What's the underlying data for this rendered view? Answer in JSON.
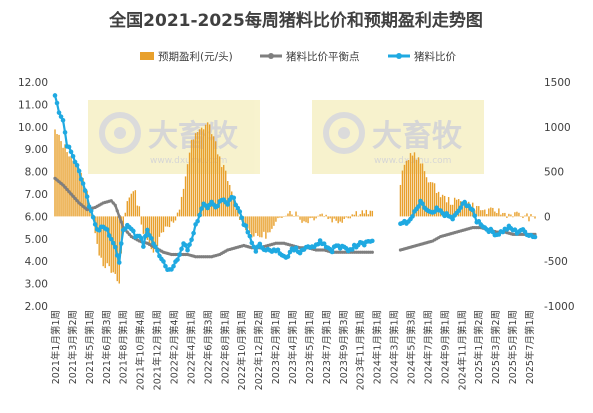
{
  "chart_data": {
    "type": "bar+line",
    "title": "全国2021-2025每周猪料比价和预期盈利走势图",
    "legend_position": "top-center",
    "legend": [
      {
        "key": "profit",
        "label": "预期盈利(元/头)",
        "color": "#E8A02C"
      },
      {
        "key": "breakeven",
        "label": "猪料比价平衡点",
        "color": "#7F7F7F"
      },
      {
        "key": "ratio",
        "label": "猪料比价",
        "color": "#1FA9E1"
      }
    ],
    "left_axis": {
      "min": 2.0,
      "max": 12.0,
      "step": 1.0,
      "ticks": [
        "2.00",
        "3.00",
        "4.00",
        "5.00",
        "6.00",
        "7.00",
        "8.00",
        "9.00",
        "10.00",
        "11.00",
        "12.00"
      ]
    },
    "right_axis": {
      "min": -1000,
      "max": 1500,
      "step": 500,
      "ticks": [
        "-1000",
        "-500",
        "0",
        "500",
        "1000",
        "1500"
      ]
    },
    "x_categories": [
      "2021年1月第1周",
      "2021年3月第2周",
      "2021年5月第1周",
      "2021年6月第3周",
      "2021年8月第1周",
      "2021年10月第4周",
      "2021年12月第1周",
      "2022年2月第4周",
      "2022年4月第1周",
      "2022年6月第3周",
      "2022年8月第1周",
      "2022年10月第1周",
      "2022年12月第2周",
      "2023年2月第1周",
      "2023年4月第1周",
      "2023年5月第1周",
      "2023年7月第1周",
      "2023年9月第3周",
      "2023年11月第1周",
      "2024年1月第1周",
      "2024年3月第1周",
      "2024年5月第3周",
      "2024年7月第1周",
      "2024年9月第1周",
      "2024年11月第1周",
      "2025年1月第2周",
      "2025年3月第2周",
      "2025年5月第1周",
      "2025年7月第1周"
    ],
    "weeks_total": 240,
    "ratio_anchors": [
      [
        0,
        11.4
      ],
      [
        2,
        10.7
      ],
      [
        4,
        10.3
      ],
      [
        6,
        9.2
      ],
      [
        9,
        8.7
      ],
      [
        12,
        8.0
      ],
      [
        15,
        7.2
      ],
      [
        17,
        6.5
      ],
      [
        20,
        5.7
      ],
      [
        22,
        5.3
      ],
      [
        24,
        5.6
      ],
      [
        27,
        5.2
      ],
      [
        30,
        4.6
      ],
      [
        32,
        4.0
      ],
      [
        34,
        5.4
      ],
      [
        36,
        5.6
      ],
      [
        38,
        5.5
      ],
      [
        40,
        5.1
      ],
      [
        42,
        5.2
      ],
      [
        44,
        4.7
      ],
      [
        46,
        5.4
      ],
      [
        48,
        5.0
      ],
      [
        50,
        4.6
      ],
      [
        52,
        4.3
      ],
      [
        54,
        4.0
      ],
      [
        56,
        3.7
      ],
      [
        58,
        3.6
      ],
      [
        60,
        3.9
      ],
      [
        62,
        4.3
      ],
      [
        64,
        4.8
      ],
      [
        66,
        4.5
      ],
      [
        68,
        5.0
      ],
      [
        70,
        5.6
      ],
      [
        72,
        6.1
      ],
      [
        74,
        6.5
      ],
      [
        76,
        6.3
      ],
      [
        78,
        6.6
      ],
      [
        80,
        6.4
      ],
      [
        82,
        6.7
      ],
      [
        84,
        6.8
      ],
      [
        86,
        6.5
      ],
      [
        88,
        6.9
      ],
      [
        90,
        6.6
      ],
      [
        92,
        6.2
      ],
      [
        94,
        5.7
      ],
      [
        96,
        5.3
      ],
      [
        98,
        4.8
      ],
      [
        100,
        4.5
      ],
      [
        102,
        4.7
      ],
      [
        104,
        4.6
      ],
      [
        106,
        4.5
      ],
      [
        108,
        4.4
      ],
      [
        110,
        4.5
      ],
      [
        112,
        4.4
      ],
      [
        114,
        4.3
      ],
      [
        116,
        4.2
      ],
      [
        118,
        4.5
      ],
      [
        120,
        4.6
      ],
      [
        122,
        4.4
      ],
      [
        124,
        4.6
      ],
      [
        126,
        4.7
      ],
      [
        128,
        4.6
      ],
      [
        130,
        4.8
      ],
      [
        132,
        4.9
      ],
      [
        134,
        4.8
      ],
      [
        136,
        4.6
      ],
      [
        138,
        4.5
      ],
      [
        140,
        4.7
      ],
      [
        142,
        4.6
      ],
      [
        144,
        4.6
      ],
      [
        146,
        4.5
      ],
      [
        148,
        4.6
      ],
      [
        150,
        4.7
      ],
      [
        152,
        4.9
      ],
      [
        154,
        4.8
      ],
      [
        156,
        4.9
      ],
      [
        158,
        4.9
      ],
      [
        160,
        null
      ],
      [
        171,
        null
      ],
      [
        172,
        5.6
      ],
      [
        174,
        5.8
      ],
      [
        176,
        5.7
      ],
      [
        178,
        6.0
      ],
      [
        180,
        6.3
      ],
      [
        182,
        6.6
      ],
      [
        184,
        6.4
      ],
      [
        186,
        6.2
      ],
      [
        188,
        6.1
      ],
      [
        190,
        6.3
      ],
      [
        192,
        6.2
      ],
      [
        194,
        6.1
      ],
      [
        196,
        6.0
      ],
      [
        198,
        5.9
      ],
      [
        200,
        6.1
      ],
      [
        202,
        6.4
      ],
      [
        204,
        6.6
      ],
      [
        206,
        6.5
      ],
      [
        208,
        6.2
      ],
      [
        210,
        5.8
      ],
      [
        212,
        5.7
      ],
      [
        214,
        5.5
      ],
      [
        216,
        5.4
      ],
      [
        218,
        5.3
      ],
      [
        220,
        5.2
      ],
      [
        222,
        5.3
      ],
      [
        224,
        5.4
      ],
      [
        226,
        5.5
      ],
      [
        228,
        5.4
      ],
      [
        230,
        5.3
      ],
      [
        232,
        5.4
      ],
      [
        234,
        5.3
      ],
      [
        236,
        5.2
      ],
      [
        239,
        5.1
      ]
    ],
    "breakeven_anchors": [
      [
        0,
        7.7
      ],
      [
        4,
        7.4
      ],
      [
        8,
        7.0
      ],
      [
        12,
        6.6
      ],
      [
        16,
        6.3
      ],
      [
        20,
        6.4
      ],
      [
        24,
        6.6
      ],
      [
        28,
        6.7
      ],
      [
        30,
        6.5
      ],
      [
        32,
        6.0
      ],
      [
        34,
        5.5
      ],
      [
        38,
        5.1
      ],
      [
        42,
        4.9
      ],
      [
        46,
        4.8
      ],
      [
        50,
        4.6
      ],
      [
        54,
        4.4
      ],
      [
        58,
        4.3
      ],
      [
        62,
        4.3
      ],
      [
        66,
        4.3
      ],
      [
        70,
        4.2
      ],
      [
        74,
        4.2
      ],
      [
        78,
        4.2
      ],
      [
        82,
        4.3
      ],
      [
        86,
        4.5
      ],
      [
        90,
        4.6
      ],
      [
        94,
        4.7
      ],
      [
        98,
        4.6
      ],
      [
        102,
        4.6
      ],
      [
        106,
        4.7
      ],
      [
        110,
        4.8
      ],
      [
        114,
        4.8
      ],
      [
        118,
        4.7
      ],
      [
        122,
        4.6
      ],
      [
        126,
        4.6
      ],
      [
        130,
        4.5
      ],
      [
        134,
        4.5
      ],
      [
        138,
        4.4
      ],
      [
        142,
        4.4
      ],
      [
        146,
        4.4
      ],
      [
        150,
        4.4
      ],
      [
        154,
        4.4
      ],
      [
        158,
        4.4
      ],
      [
        160,
        null
      ],
      [
        171,
        null
      ],
      [
        172,
        4.5
      ],
      [
        176,
        4.6
      ],
      [
        180,
        4.7
      ],
      [
        184,
        4.8
      ],
      [
        188,
        4.9
      ],
      [
        192,
        5.1
      ],
      [
        196,
        5.2
      ],
      [
        200,
        5.3
      ],
      [
        204,
        5.4
      ],
      [
        208,
        5.5
      ],
      [
        212,
        5.5
      ],
      [
        216,
        5.4
      ],
      [
        220,
        5.3
      ],
      [
        224,
        5.3
      ],
      [
        228,
        5.2
      ],
      [
        232,
        5.2
      ],
      [
        236,
        5.2
      ],
      [
        239,
        5.2
      ]
    ],
    "profit_anchors": [
      [
        0,
        950
      ],
      [
        4,
        800
      ],
      [
        8,
        680
      ],
      [
        12,
        520
      ],
      [
        16,
        300
      ],
      [
        18,
        40
      ],
      [
        20,
        -150
      ],
      [
        22,
        -400
      ],
      [
        24,
        -520
      ],
      [
        26,
        -560
      ],
      [
        28,
        -620
      ],
      [
        30,
        -680
      ],
      [
        32,
        -750
      ],
      [
        34,
        -100
      ],
      [
        36,
        180
      ],
      [
        38,
        280
      ],
      [
        40,
        250
      ],
      [
        42,
        80
      ],
      [
        44,
        -180
      ],
      [
        46,
        -300
      ],
      [
        48,
        -380
      ],
      [
        50,
        -340
      ],
      [
        52,
        -250
      ],
      [
        54,
        -140
      ],
      [
        56,
        -90
      ],
      [
        58,
        -80
      ],
      [
        60,
        -50
      ],
      [
        62,
        60
      ],
      [
        64,
        320
      ],
      [
        66,
        600
      ],
      [
        68,
        820
      ],
      [
        70,
        900
      ],
      [
        72,
        950
      ],
      [
        74,
        1000
      ],
      [
        76,
        1050
      ],
      [
        78,
        950
      ],
      [
        80,
        800
      ],
      [
        82,
        650
      ],
      [
        84,
        540
      ],
      [
        86,
        400
      ],
      [
        88,
        250
      ],
      [
        90,
        100
      ],
      [
        92,
        0
      ],
      [
        94,
        -80
      ],
      [
        96,
        -150
      ],
      [
        98,
        -200
      ],
      [
        100,
        -230
      ],
      [
        102,
        -220
      ],
      [
        104,
        -210
      ],
      [
        106,
        -200
      ],
      [
        108,
        -160
      ],
      [
        110,
        -90
      ],
      [
        112,
        -30
      ],
      [
        114,
        40
      ],
      [
        116,
        60
      ],
      [
        118,
        50
      ],
      [
        120,
        30
      ],
      [
        122,
        -20
      ],
      [
        124,
        -60
      ],
      [
        126,
        -40
      ],
      [
        128,
        -20
      ],
      [
        130,
        10
      ],
      [
        132,
        30
      ],
      [
        134,
        20
      ],
      [
        136,
        -10
      ],
      [
        138,
        -30
      ],
      [
        140,
        -60
      ],
      [
        142,
        -40
      ],
      [
        144,
        -20
      ],
      [
        146,
        10
      ],
      [
        148,
        20
      ],
      [
        150,
        40
      ],
      [
        152,
        60
      ],
      [
        154,
        50
      ],
      [
        156,
        40
      ],
      [
        158,
        30
      ],
      [
        160,
        null
      ],
      [
        171,
        null
      ],
      [
        172,
        380
      ],
      [
        174,
        560
      ],
      [
        176,
        660
      ],
      [
        178,
        720
      ],
      [
        180,
        650
      ],
      [
        182,
        600
      ],
      [
        184,
        500
      ],
      [
        186,
        420
      ],
      [
        188,
        350
      ],
      [
        190,
        300
      ],
      [
        192,
        240
      ],
      [
        194,
        200
      ],
      [
        196,
        180
      ],
      [
        198,
        160
      ],
      [
        200,
        170
      ],
      [
        202,
        180
      ],
      [
        204,
        160
      ],
      [
        206,
        140
      ],
      [
        208,
        120
      ],
      [
        210,
        100
      ],
      [
        212,
        80
      ],
      [
        214,
        60
      ],
      [
        216,
        50
      ],
      [
        218,
        60
      ],
      [
        220,
        70
      ],
      [
        222,
        40
      ],
      [
        224,
        30
      ],
      [
        226,
        20
      ],
      [
        228,
        30
      ],
      [
        230,
        20
      ],
      [
        232,
        10
      ],
      [
        234,
        0
      ],
      [
        236,
        -10
      ],
      [
        239,
        -30
      ]
    ]
  },
  "watermark": {
    "brand": "大畜牧",
    "url": "www.dxumu.com"
  }
}
